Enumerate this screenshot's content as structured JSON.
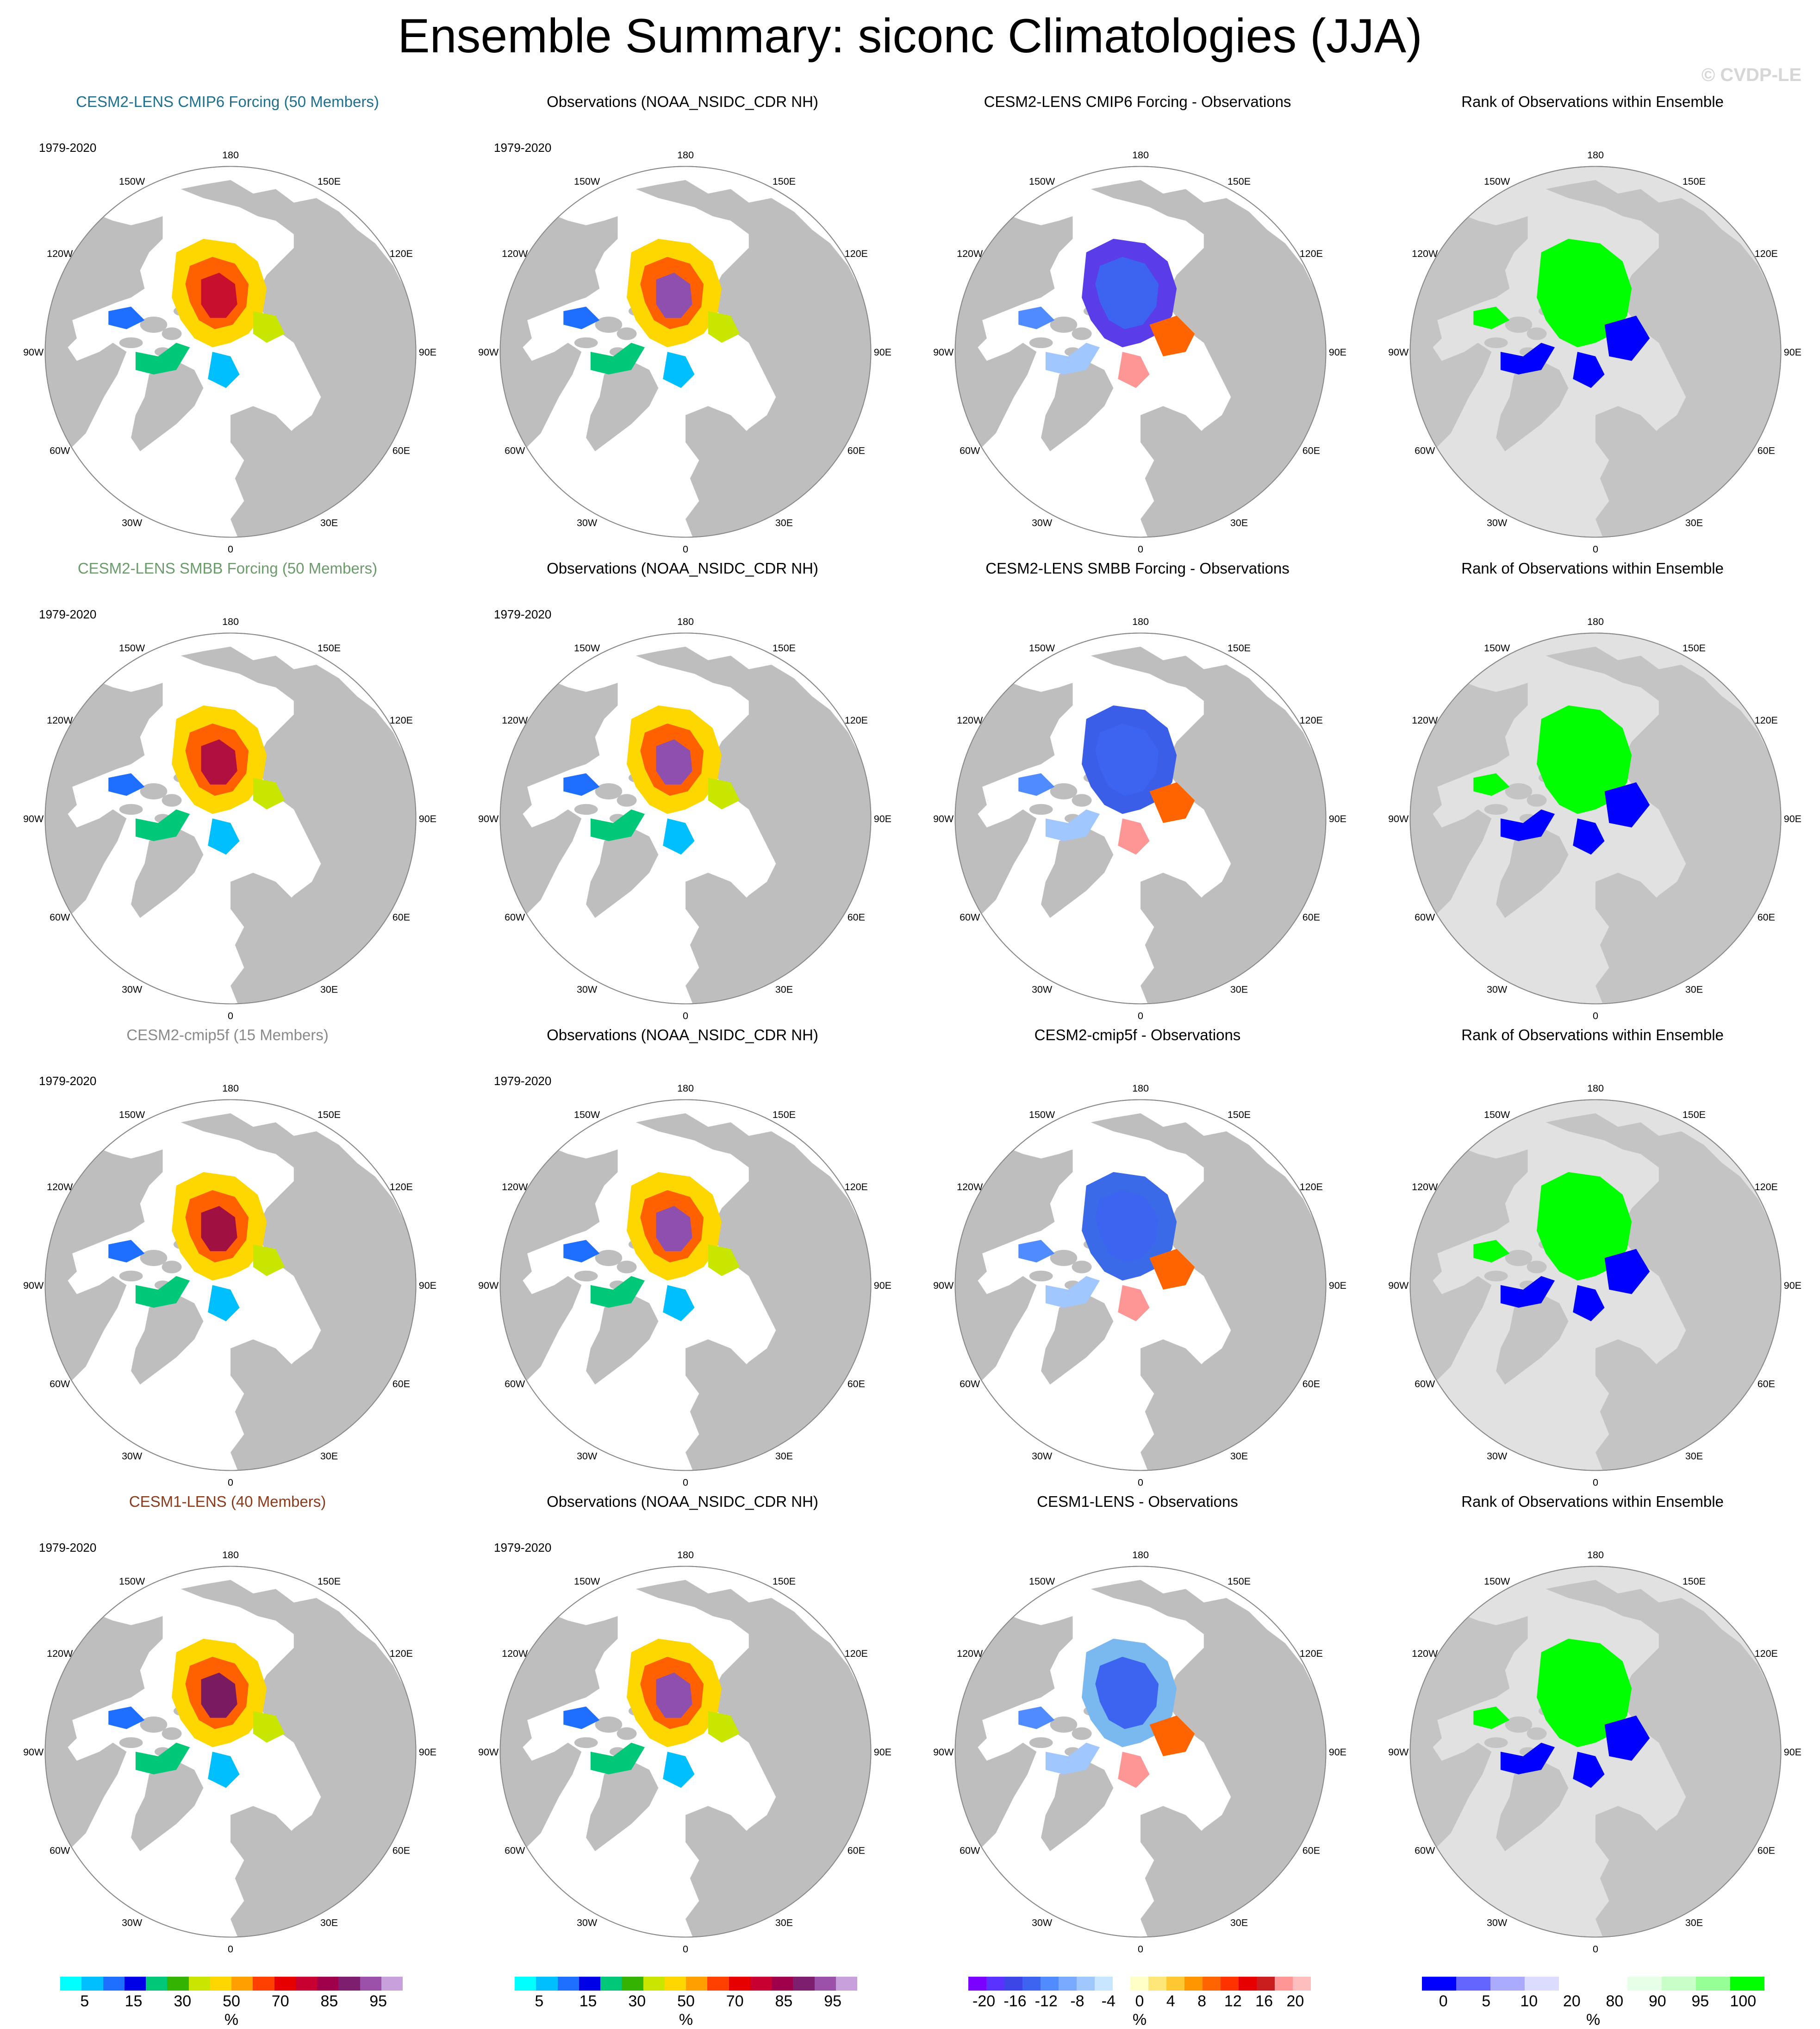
{
  "title": "Ensemble Summary: siconc Climatologies (JJA)",
  "watermark": "© CVDP-LE",
  "period": "1979-2020",
  "lon_labels": [
    "180",
    "150E",
    "120E",
    "90E",
    "60E",
    "30E",
    "0",
    "30W",
    "60W",
    "90W",
    "120W",
    "150W"
  ],
  "rows": [
    {
      "model_title": "CESM2-LENS CMIP6 Forcing (50 Members)",
      "model_title_color": "#1f6f8f",
      "obs_title": "Observations (NOAA_NSIDC_CDR NH)",
      "diff_title": "CESM2-LENS CMIP6 Forcing - Observations",
      "rank_title": "Rank of Observations within Ensemble",
      "model_core_color": "#c8102e",
      "diff_main_color": "#5a3ce8",
      "rank_main_color": "#00ff00"
    },
    {
      "model_title": "CESM2-LENS SMBB Forcing (50 Members)",
      "model_title_color": "#6b9b6b",
      "obs_title": "Observations (NOAA_NSIDC_CDR NH)",
      "diff_title": "CESM2-LENS SMBB Forcing - Observations",
      "rank_title": "Rank of Observations within Ensemble",
      "model_core_color": "#b01040",
      "diff_main_color": "#3a5ee8",
      "rank_main_color": "#00ff00"
    },
    {
      "model_title": "CESM2-cmip5f (15 Members)",
      "model_title_color": "#8a8a8a",
      "obs_title": "Observations (NOAA_NSIDC_CDR NH)",
      "diff_title": "CESM2-cmip5f - Observations",
      "rank_title": "Rank of Observations within Ensemble",
      "model_core_color": "#a01040",
      "diff_main_color": "#3a6ae8",
      "rank_main_color": "#00ff00"
    },
    {
      "model_title": "CESM1-LENS (40 Members)",
      "model_title_color": "#8b3a1a",
      "obs_title": "Observations (NOAA_NSIDC_CDR NH)",
      "diff_title": "CESM1-LENS - Observations",
      "rank_title": "Rank of Observations within Ensemble",
      "model_core_color": "#7a1a60",
      "diff_main_color": "#7ab8f0",
      "rank_main_color": "#00ff00"
    }
  ],
  "colors": {
    "land": "#bebebe",
    "ocean": "#ffffff",
    "rank_background": "#e1e1e1",
    "obs_core": "#8e4fae"
  },
  "colorbars": {
    "conc": {
      "colors": [
        "#00ffff",
        "#00bfff",
        "#1e6fff",
        "#0000e6",
        "#00c878",
        "#32b400",
        "#c8e600",
        "#ffd700",
        "#ffa000",
        "#ff4000",
        "#e60000",
        "#c80032",
        "#a0004b",
        "#7d1e6e",
        "#9b50aa",
        "#c8a0dc"
      ],
      "labels": [
        "5",
        "15",
        "30",
        "50",
        "70",
        "85",
        "95"
      ],
      "unit": "%"
    },
    "diff": {
      "colors": [
        "#7a00ff",
        "#5a32ff",
        "#3c46e6",
        "#3c64f0",
        "#508cff",
        "#78aaff",
        "#a0c8ff",
        "#c8e6ff",
        "#ffffff",
        "#ffffc8",
        "#ffe678",
        "#ffc832",
        "#ff9600",
        "#ff6400",
        "#ff3200",
        "#e60000",
        "#c81e1e",
        "#ff9696",
        "#ffbebe"
      ],
      "labels": [
        "-20",
        "-16",
        "-12",
        "-8",
        "-4",
        "0",
        "4",
        "8",
        "12",
        "16",
        "20"
      ],
      "unit": "%"
    },
    "rank": {
      "colors": [
        "#0000ff",
        "#6464ff",
        "#aaaaff",
        "#dcdcff",
        "#ffffff",
        "#ffffff",
        "#e6ffe6",
        "#c8ffc8",
        "#96ff96",
        "#00ff00"
      ],
      "labels": [
        "0",
        "5",
        "10",
        "20",
        "80",
        "90",
        "95",
        "100"
      ],
      "unit": "%"
    }
  }
}
